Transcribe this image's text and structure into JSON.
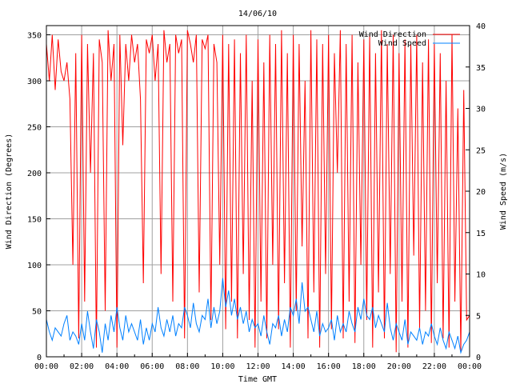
{
  "chart_data": {
    "type": "line",
    "title": "14/06/10",
    "xlabel": "Time GMT",
    "ylabel": "Wind Direction (Degrees)",
    "y2label": "Wind Speed (m/s)",
    "x_ticks": [
      "00:00",
      "02:00",
      "04:00",
      "06:00",
      "08:00",
      "10:00",
      "12:00",
      "14:00",
      "16:00",
      "18:00",
      "20:00",
      "22:00",
      "00:00"
    ],
    "xlim_hours": [
      0,
      24
    ],
    "ylim": [
      0,
      360
    ],
    "y_ticks": [
      0,
      50,
      100,
      150,
      200,
      250,
      300,
      350
    ],
    "y2lim": [
      0,
      40
    ],
    "y2_ticks": [
      0,
      5,
      10,
      15,
      20,
      25,
      30,
      35,
      40
    ],
    "grid": true,
    "legend_position": "top-right",
    "sample_interval_minutes": 10,
    "series": [
      {
        "name": "Wind Direction",
        "axis": "left",
        "color": "#ff0000",
        "values": [
          340,
          300,
          350,
          290,
          345,
          310,
          300,
          320,
          280,
          100,
          330,
          20,
          350,
          60,
          340,
          200,
          330,
          10,
          345,
          320,
          50,
          355,
          300,
          340,
          10,
          350,
          230,
          340,
          300,
          350,
          320,
          340,
          280,
          80,
          345,
          330,
          350,
          300,
          340,
          90,
          355,
          320,
          340,
          60,
          350,
          330,
          345,
          20,
          355,
          340,
          320,
          350,
          70,
          345,
          335,
          350,
          40,
          340,
          320,
          100,
          350,
          30,
          340,
          60,
          345,
          20,
          330,
          90,
          350,
          40,
          300,
          10,
          345,
          60,
          320,
          20,
          350,
          100,
          340,
          30,
          355,
          80,
          330,
          10,
          350,
          50,
          340,
          120,
          300,
          20,
          355,
          70,
          345,
          10,
          340,
          90,
          350,
          30,
          330,
          200,
          355,
          20,
          340,
          60,
          350,
          15,
          320,
          100,
          345,
          40,
          350,
          10,
          330,
          70,
          355,
          20,
          340,
          90,
          350,
          5,
          330,
          60,
          345,
          10,
          340,
          110,
          350,
          30,
          320,
          50,
          345,
          15,
          340,
          80,
          330,
          20,
          300,
          10,
          350,
          60,
          270,
          5,
          290,
          40,
          45
        ]
      },
      {
        "name": "Wind Speed",
        "axis": "right",
        "color": "#0080ff",
        "values": [
          4.5,
          3,
          2,
          3.5,
          3,
          2.5,
          4,
          5,
          2,
          3,
          2.5,
          1.5,
          4,
          2,
          5.5,
          3,
          1,
          4.5,
          3,
          0.5,
          4,
          2,
          5,
          3,
          6,
          3.5,
          2,
          5,
          3,
          4,
          3,
          2,
          4.5,
          1.5,
          3.5,
          2,
          4,
          3,
          6,
          3.5,
          2.5,
          4.5,
          3,
          5,
          2.5,
          4,
          3.5,
          6,
          5,
          3.5,
          6.5,
          4,
          3,
          5,
          4.5,
          7,
          3.5,
          6,
          4,
          5.5,
          9.5,
          6,
          8,
          5,
          7,
          4.5,
          6,
          4,
          5.5,
          3,
          4.5,
          3.5,
          4,
          2.5,
          5,
          3,
          1.5,
          4,
          3.5,
          5,
          2.5,
          4.5,
          3,
          6,
          5,
          7,
          4,
          9,
          5.5,
          6,
          4.5,
          3,
          5.5,
          2.5,
          4,
          3,
          3.5,
          4.5,
          2,
          5,
          3,
          4,
          3,
          5.5,
          4,
          3,
          6,
          4.5,
          7,
          5,
          4.5,
          6,
          3.5,
          5,
          4,
          3,
          6.5,
          3.5,
          2,
          4,
          3,
          2,
          4.5,
          1.5,
          3,
          2.5,
          2,
          3.5,
          1.5,
          3,
          2.5,
          4,
          2.5,
          1.5,
          3.5,
          2,
          1,
          3,
          2,
          1,
          2.5,
          0.5,
          1.5,
          2,
          3
        ]
      }
    ]
  }
}
